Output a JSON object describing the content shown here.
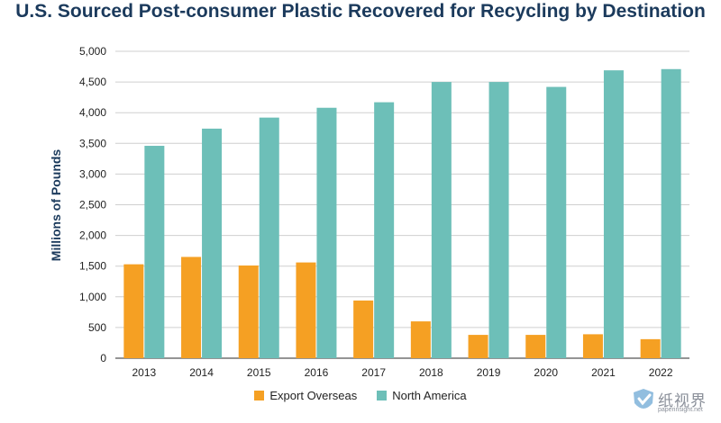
{
  "chart_data": {
    "type": "bar",
    "title": "U.S. Sourced Post-consumer Plastic Recovered for Recycling by Destination",
    "xlabel": "",
    "ylabel": "Millions of Pounds",
    "ylim": [
      0,
      5000
    ],
    "yticks": [
      "0",
      "500",
      "1,000",
      "1,500",
      "2,000",
      "2,500",
      "3,000",
      "3,500",
      "4,000",
      "4,500",
      "5,000"
    ],
    "categories": [
      "2013",
      "2014",
      "2015",
      "2016",
      "2017",
      "2018",
      "2019",
      "2020",
      "2021",
      "2022"
    ],
    "series": [
      {
        "name": "Export Overseas",
        "color": "#f5a023",
        "values": [
          1530,
          1650,
          1510,
          1560,
          940,
          600,
          380,
          380,
          390,
          310
        ]
      },
      {
        "name": "North America",
        "color": "#6dbfb8",
        "values": [
          3460,
          3740,
          3920,
          4080,
          4170,
          4500,
          4500,
          4420,
          4690,
          4710
        ]
      }
    ],
    "grid": true,
    "legend_position": "bottom-center"
  },
  "watermark": {
    "text_cn": "纸视界",
    "url": "paperinsight.net",
    "icon": "paperinsight-logo-icon"
  }
}
